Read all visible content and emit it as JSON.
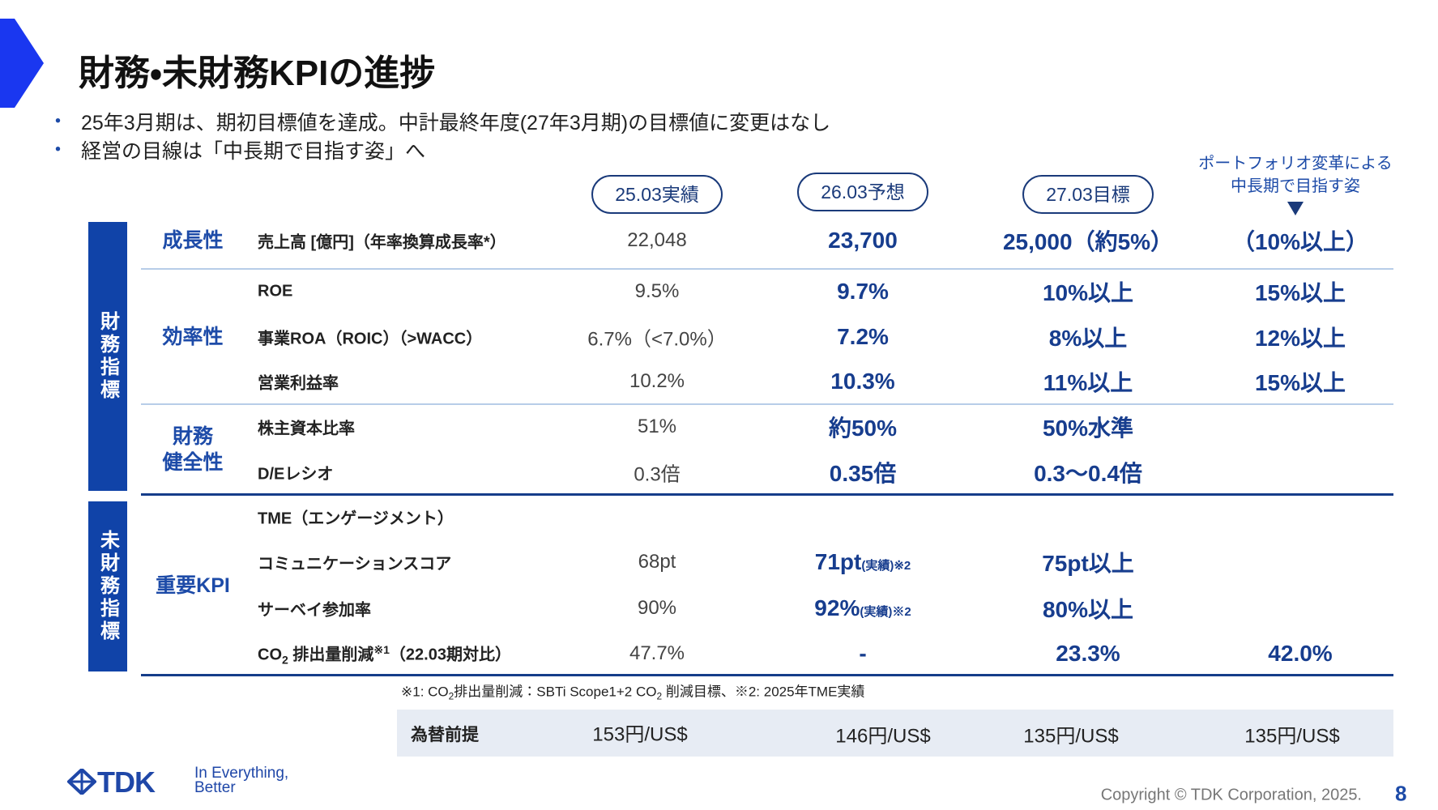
{
  "header": {
    "title": "財務・未財務KPIの進捗"
  },
  "bullets": [
    "25年3月期は、期初目標値を達成。中計最終年度(27年3月期)の目標値に変更はなし",
    "経営の目線は「中長期で目指す姿」へ"
  ],
  "table": {
    "columns": [
      "25.03実績",
      "26.03予想",
      "27.03目標"
    ],
    "vision_header": [
      "ポートフォリオ変革による",
      "中長期で目指す姿"
    ],
    "groups": [
      {
        "label": "財務指標",
        "categories": [
          {
            "label": [
              "成長性"
            ],
            "rows": [
              {
                "label": "売上高 [億円]（年率換算成長率*）",
                "values": [
                  "22,048",
                  "23,700",
                  "25,000（約5%）",
                  "（10%以上）"
                ]
              }
            ]
          },
          {
            "label": [
              "効率性"
            ],
            "rows": [
              {
                "label": "ROE",
                "values": [
                  "9.5%",
                  "9.7%",
                  "10%以上",
                  "15%以上"
                ]
              },
              {
                "label": "事業ROA（ROIC）（>WACC）",
                "values": [
                  "6.7%（<7.0%）",
                  "7.2%",
                  "8%以上",
                  "12%以上"
                ]
              },
              {
                "label": "営業利益率",
                "values": [
                  "10.2%",
                  "10.3%",
                  "11%以上",
                  "15%以上"
                ]
              }
            ]
          },
          {
            "label": [
              "財務",
              "健全性"
            ],
            "rows": [
              {
                "label": "株主資本比率",
                "values": [
                  "51%",
                  "約50%",
                  "50%水準",
                  null
                ]
              },
              {
                "label": "D/Eレシオ",
                "values": [
                  "0.3倍",
                  "0.35倍",
                  "0.3〜0.4倍",
                  null
                ]
              }
            ]
          }
        ]
      },
      {
        "label": "未財務指標",
        "categories": [
          {
            "label": [
              "重要KPI"
            ],
            "rows": [
              {
                "label": "TME（エンゲージメント）",
                "values": [
                  null,
                  null,
                  null,
                  null
                ]
              },
              {
                "label": "コミュニケーションスコア",
                "values": [
                  "68pt",
                  [
                    "71pt",
                    "(実績)※2"
                  ],
                  "75pt以上",
                  null
                ]
              },
              {
                "label": "サーベイ参加率",
                "values": [
                  "90%",
                  [
                    "92%",
                    "(実績)※2"
                  ],
                  "80%以上",
                  null
                ]
              },
              {
                "label": [
                  "CO",
                  "2",
                  " 排出量削減",
                  "※1",
                  "（22.03期対比）"
                ],
                "values": [
                  "47.7%",
                  "-",
                  "23.3%",
                  "42.0%"
                ]
              }
            ]
          }
        ]
      }
    ],
    "footnote": [
      "※1: CO",
      "2",
      "排出量削減：SBTi Scope1+2 CO",
      "2",
      " 削減目標、※2: 2025年TME実績"
    ],
    "fx": {
      "label": "為替前提",
      "values": [
        "153円/US$",
        "146円/US$",
        "135円/US$",
        "135円/US$"
      ]
    }
  },
  "footer": {
    "logo": "TDK",
    "tagline": [
      "In Everything,",
      "Better"
    ],
    "copyright": "Copyright © TDK Corporation, 2025.",
    "page": "8"
  }
}
